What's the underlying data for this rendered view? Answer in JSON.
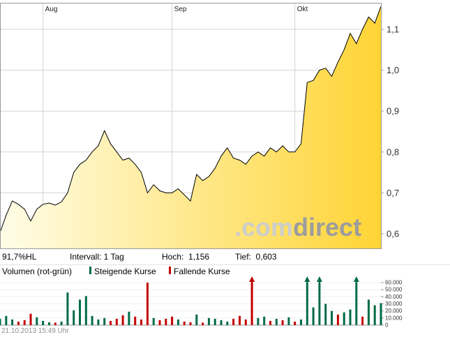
{
  "watermark": {
    "prefix": ".com",
    "suffix": "direct"
  },
  "stats": {
    "hl": "91,7%HL",
    "interval": "Intervall: 1 Tag",
    "high": "Hoch:  1,156",
    "low": "Tief:  0,603"
  },
  "legend": {
    "volume_label": "Volumen (rot-grün)",
    "rising": "Steigende Kurse",
    "falling": "Fallende Kurse"
  },
  "timestamp": "21.10.2013 15:49 Uhr",
  "colors": {
    "up": "#006B45",
    "down": "#C40000",
    "grid": "#d3d3d3",
    "frame": "#999999",
    "line": "#000000",
    "area_start": "#FFFDE8",
    "area_end": "#FFD435",
    "watermark_light": "#cdcdcd",
    "watermark_dark": "#9c9c9c",
    "axis_text": "#333333"
  },
  "chart_data": [
    {
      "type": "area",
      "name": "Kursverlauf",
      "interval": "1 Tag",
      "high": 1.156,
      "low": 0.603,
      "ylim": [
        0.565,
        1.17
      ],
      "x_ticks": [
        {
          "index": 7,
          "label": "Aug"
        },
        {
          "index": 28,
          "label": "Sep"
        },
        {
          "index": 48,
          "label": "Okt"
        }
      ],
      "y_ticks": [
        {
          "value": 1.1,
          "label": "1,1"
        },
        {
          "value": 1.0,
          "label": "1,0"
        },
        {
          "value": 0.9,
          "label": "0,9"
        },
        {
          "value": 0.8,
          "label": "0,8"
        },
        {
          "value": 0.7,
          "label": "0,7"
        },
        {
          "value": 0.6,
          "label": "0,6"
        }
      ],
      "values": [
        0.603,
        0.645,
        0.68,
        0.672,
        0.66,
        0.631,
        0.66,
        0.672,
        0.675,
        0.67,
        0.678,
        0.7,
        0.75,
        0.77,
        0.78,
        0.8,
        0.815,
        0.852,
        0.82,
        0.8,
        0.78,
        0.785,
        0.77,
        0.75,
        0.7,
        0.72,
        0.705,
        0.7,
        0.7,
        0.71,
        0.695,
        0.68,
        0.745,
        0.73,
        0.74,
        0.76,
        0.79,
        0.81,
        0.785,
        0.78,
        0.77,
        0.79,
        0.8,
        0.79,
        0.81,
        0.8,
        0.815,
        0.8,
        0.8,
        0.82,
        0.97,
        0.975,
        1.0,
        1.005,
        0.985,
        1.02,
        1.05,
        1.09,
        1.065,
        1.1,
        1.13,
        1.115,
        1.156
      ]
    },
    {
      "type": "bar",
      "name": "Volumen",
      "ylim": [
        0,
        60000
      ],
      "y_ticks": [
        {
          "value": 60000,
          "label": "60.000"
        },
        {
          "value": 50000,
          "label": "50.000"
        },
        {
          "value": 40000,
          "label": "40.000"
        },
        {
          "value": 30000,
          "label": "30.000"
        },
        {
          "value": 20000,
          "label": "20.000"
        },
        {
          "value": 10000,
          "label": "10.000"
        },
        {
          "value": 0,
          "label": "0"
        }
      ],
      "values": [
        9000,
        13000,
        8000,
        5000,
        7000,
        16000,
        11000,
        6000,
        4000,
        3500,
        5000,
        46000,
        21000,
        36000,
        41000,
        13000,
        8000,
        10000,
        6000,
        9000,
        14000,
        19000,
        12000,
        8000,
        60000,
        10000,
        7000,
        9000,
        12000,
        8000,
        5000,
        4000,
        15000,
        3500,
        10000,
        9000,
        7000,
        5000,
        9000,
        13000,
        8000,
        66000,
        10000,
        12000,
        6000,
        9000,
        7000,
        11000,
        5000,
        8000,
        70000,
        25000,
        64000,
        30000,
        20000,
        15000,
        18000,
        22000,
        65000,
        12000,
        36000,
        28000,
        31000
      ],
      "directions": [
        "u",
        "u",
        "u",
        "d",
        "d",
        "d",
        "u",
        "u",
        "u",
        "d",
        "u",
        "u",
        "u",
        "u",
        "u",
        "u",
        "u",
        "u",
        "d",
        "d",
        "d",
        "u",
        "d",
        "d",
        "d",
        "u",
        "d",
        "d",
        "d",
        "u",
        "d",
        "d",
        "u",
        "d",
        "u",
        "u",
        "u",
        "u",
        "d",
        "d",
        "d",
        "d",
        "u",
        "u",
        "d",
        "u",
        "d",
        "u",
        "d",
        "u",
        "u",
        "u",
        "u",
        "u",
        "u",
        "d",
        "u",
        "u",
        "u",
        "d",
        "u",
        "u",
        "u"
      ]
    }
  ]
}
